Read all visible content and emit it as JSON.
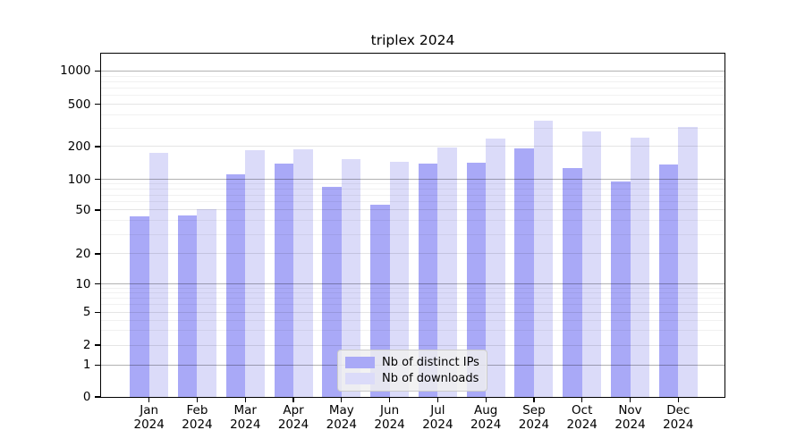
{
  "title": "triplex 2024",
  "legend": {
    "items": [
      {
        "label": "Nb of distinct IPs",
        "color": "#a9a9f7"
      },
      {
        "label": "Nb of downloads",
        "color": "#dbdbf9"
      }
    ],
    "position": "lower center"
  },
  "axes": {
    "y_tick_values": [
      0,
      1,
      2,
      5,
      10,
      20,
      50,
      100,
      200,
      500,
      1000
    ],
    "y_tick_labels": [
      "0",
      "1",
      "2",
      "5",
      "10",
      "20",
      "50",
      "100",
      "200",
      "500",
      "1000"
    ],
    "x_tick_labels": [
      [
        "Jan",
        "2024"
      ],
      [
        "Feb",
        "2024"
      ],
      [
        "Mar",
        "2024"
      ],
      [
        "Apr",
        "2024"
      ],
      [
        "May",
        "2024"
      ],
      [
        "Jun",
        "2024"
      ],
      [
        "Jul",
        "2024"
      ],
      [
        "Aug",
        "2024"
      ],
      [
        "Sep",
        "2024"
      ],
      [
        "Oct",
        "2024"
      ],
      [
        "Nov",
        "2024"
      ],
      [
        "Dec",
        "2024"
      ]
    ]
  },
  "chart_data": {
    "type": "bar",
    "title": "triplex 2024",
    "categories": [
      "Jan 2024",
      "Feb 2024",
      "Mar 2024",
      "Apr 2024",
      "May 2024",
      "Jun 2024",
      "Jul 2024",
      "Aug 2024",
      "Sep 2024",
      "Oct 2024",
      "Nov 2024",
      "Dec 2024"
    ],
    "series": [
      {
        "name": "Nb of distinct IPs",
        "color": "#a9a9f7",
        "values": [
          44,
          45,
          112,
          139,
          84,
          56,
          139,
          143,
          192,
          126,
          96,
          138
        ]
      },
      {
        "name": "Nb of downloads",
        "color": "#dbdbf9",
        "values": [
          175,
          51,
          184,
          190,
          152,
          146,
          196,
          238,
          350,
          276,
          243,
          305
        ]
      }
    ],
    "xlabel": "",
    "ylabel": "",
    "y_scale": "symlog",
    "y_ticks": [
      0,
      1,
      2,
      5,
      10,
      20,
      50,
      100,
      200,
      500,
      1000
    ],
    "ylim": [
      0,
      1200
    ],
    "grid": true,
    "gridlines_over_bars": true,
    "legend_position": "lower center"
  },
  "colors": {
    "distinct_ips": "#a9a9f7",
    "downloads": "#dbdbf9",
    "major_grid": "rgba(0,0,0,0.30)",
    "labeled_minor_grid": "rgba(0,0,0,0.10)",
    "minor_grid": "rgba(0,0,0,0.055)",
    "axis": "#000000",
    "background": "#ffffff"
  }
}
